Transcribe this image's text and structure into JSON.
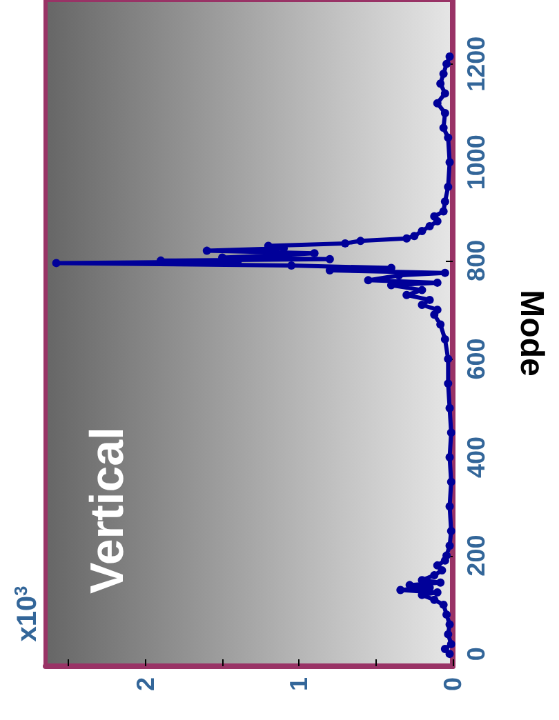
{
  "chart_data": {
    "type": "line",
    "ylabel": "Mode",
    "annotations": [
      "Vertical",
      "x10$^{3}$"
    ],
    "ylim": [
      -25,
      1330
    ],
    "yticks": [
      0,
      200,
      400,
      600,
      800,
      1000,
      1200
    ],
    "xlim": [
      2.65,
      0
    ],
    "xticks": [
      0,
      {
        "value": 0.5,
        "label": null
      },
      1,
      {
        "value": 1.5,
        "label": null
      },
      2,
      {
        "value": 2.5,
        "label": null
      }
    ],
    "grid": false,
    "marker": "circle",
    "line_style": "solid",
    "series": [
      {
        "color": "#000099",
        "values": [
          0,
          10,
          20,
          40,
          60,
          80,
          100,
          110,
          120,
          125,
          130,
          135,
          140,
          145,
          150,
          160,
          170,
          180,
          190,
          200,
          220,
          250,
          300,
          350,
          400,
          450,
          500,
          550,
          600,
          640,
          670,
          690,
          700,
          710,
          720,
          730,
          740,
          750,
          755,
          760,
          770,
          775,
          780,
          785,
          790,
          795,
          798,
          800,
          803,
          806,
          810,
          815,
          820,
          825,
          830,
          835,
          840,
          845,
          850,
          860,
          870,
          880,
          890,
          900,
          920,
          950,
          1000,
          1050,
          1070,
          1100,
          1120,
          1140,
          1160,
          1180,
          1200,
          1215
        ],
        "x": [
          0.02,
          0.05,
          0.01,
          0.03,
          0.02,
          0.04,
          0.06,
          0.12,
          0.2,
          0.1,
          0.34,
          0.15,
          0.28,
          0.08,
          0.2,
          0.12,
          0.07,
          0.1,
          0.05,
          0.04,
          0.02,
          0.01,
          0.02,
          0.01,
          0.02,
          0.01,
          0.02,
          0.03,
          0.03,
          0.05,
          0.08,
          0.12,
          0.1,
          0.2,
          0.15,
          0.3,
          0.2,
          0.4,
          0.1,
          0.55,
          0.35,
          0.05,
          0.8,
          0.4,
          1.05,
          2.58,
          1.4,
          1.9,
          0.8,
          1.5,
          1.2,
          0.9,
          1.6,
          1.1,
          1.2,
          0.7,
          0.6,
          0.3,
          0.25,
          0.2,
          0.15,
          0.1,
          0.12,
          0.06,
          0.05,
          0.03,
          0.02,
          0.03,
          0.06,
          0.05,
          0.1,
          0.05,
          0.08,
          0.06,
          0.04,
          0.02
        ]
      }
    ]
  }
}
